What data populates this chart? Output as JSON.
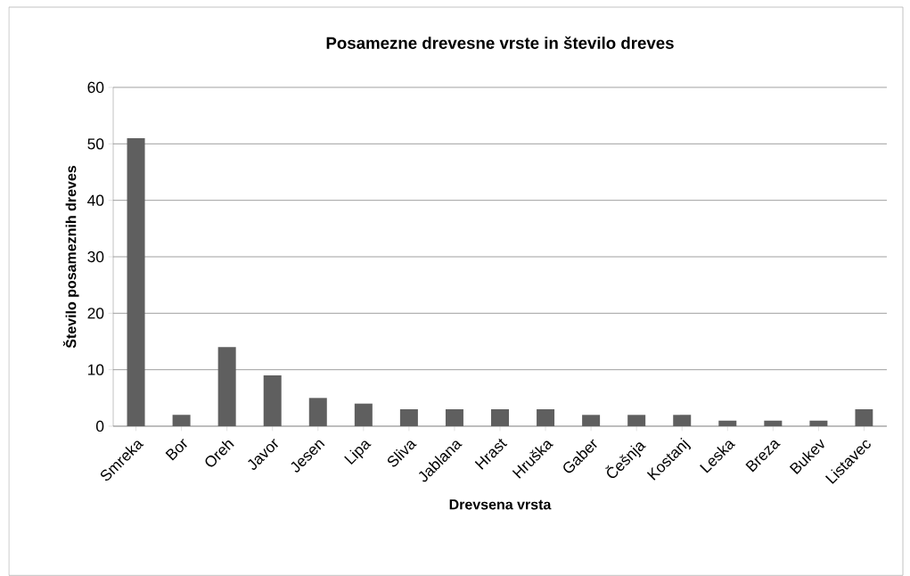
{
  "chart_data": {
    "type": "bar",
    "title": "Posamezne drevesne vrste in število dreves",
    "xlabel": "Drevsena vrsta",
    "ylabel": "Število posameznih dreves",
    "categories": [
      "Smreka",
      "Bor",
      "Oreh",
      "Javor",
      "Jesen",
      "Lipa",
      "Sliva",
      "Jablana",
      "Hrast",
      "Hruška",
      "Gaber",
      "Češnja",
      "Kostanj",
      "Leska",
      "Breza",
      "Bukev",
      "Listavec"
    ],
    "values": [
      51,
      2,
      14,
      9,
      5,
      4,
      3,
      3,
      3,
      3,
      2,
      2,
      2,
      1,
      1,
      1,
      3
    ],
    "color": "#5f5f5f",
    "ylim": [
      0,
      60
    ],
    "yticks": [
      0,
      10,
      20,
      30,
      40,
      50,
      60
    ],
    "grid": "y"
  }
}
